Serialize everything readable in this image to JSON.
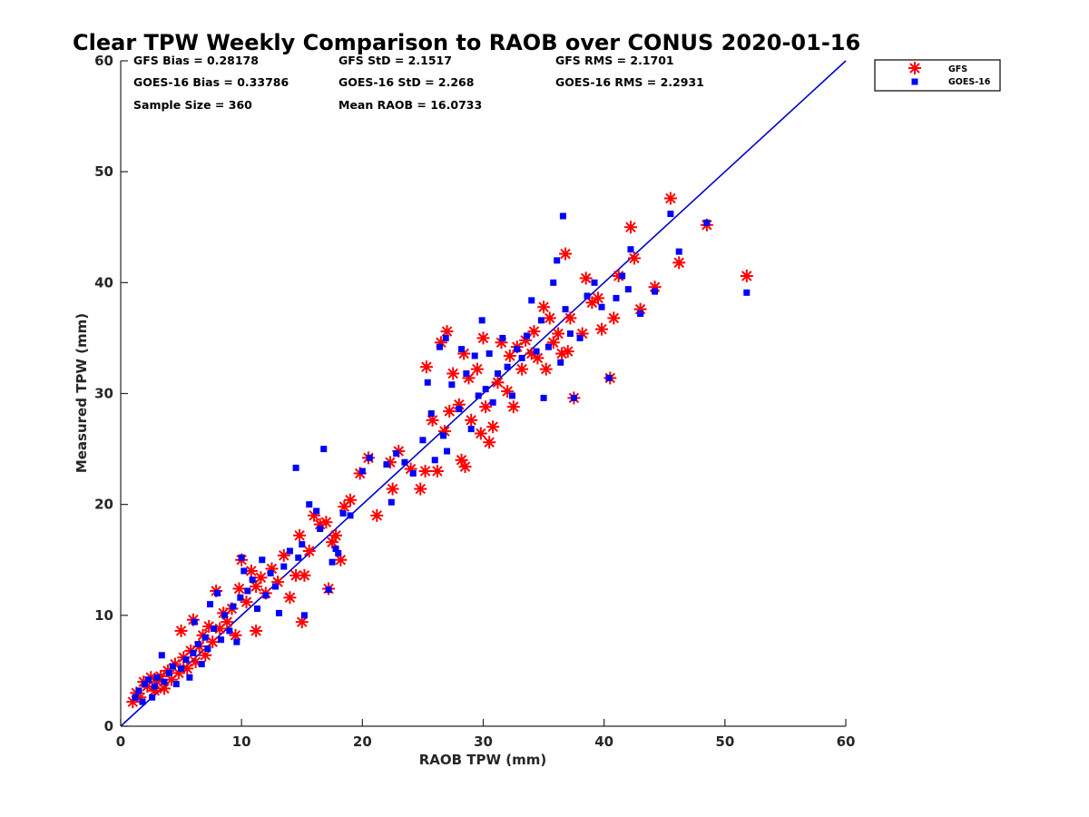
{
  "chart_data": {
    "type": "scatter",
    "title": "Clear TPW Weekly Comparison to RAOB over CONUS 2020-01-16",
    "xlabel": "RAOB TPW (mm)",
    "ylabel": "Measured TPW (mm)",
    "xlim": [
      0,
      60
    ],
    "ylim": [
      0,
      60
    ],
    "x_ticks": [
      "0",
      "10",
      "20",
      "30",
      "40",
      "50",
      "60"
    ],
    "y_ticks": [
      "0",
      "10",
      "20",
      "30",
      "40",
      "50",
      "60"
    ],
    "grid": false,
    "legend_position": "top-right outside",
    "reference_line": {
      "x": [
        0,
        60
      ],
      "y": [
        0,
        60
      ],
      "color": "#0000cc"
    },
    "stats": {
      "gfs_bias": "GFS Bias = 0.28178",
      "gfs_std": "GFS StD = 2.1517",
      "gfs_rms": "GFS RMS = 2.1701",
      "goes_bias": "GOES-16 Bias = 0.33786",
      "goes_std": "GOES-16 StD = 2.268",
      "goes_rms": "GOES-16 RMS = 2.2931",
      "sample_size": "Sample Size = 360",
      "mean_raob": "Mean RAOB = 16.0733"
    },
    "series": [
      {
        "name": "GFS",
        "marker": "asterisk",
        "color": "#ff0000",
        "points": [
          [
            1.0,
            2.2
          ],
          [
            1.3,
            3.0
          ],
          [
            1.6,
            2.6
          ],
          [
            1.9,
            4.0
          ],
          [
            2.2,
            3.6
          ],
          [
            2.5,
            4.4
          ],
          [
            2.8,
            3.2
          ],
          [
            3.0,
            4.0
          ],
          [
            3.3,
            4.5
          ],
          [
            3.6,
            3.4
          ],
          [
            3.9,
            5.0
          ],
          [
            4.2,
            4.2
          ],
          [
            4.5,
            5.6
          ],
          [
            4.8,
            4.8
          ],
          [
            5.0,
            8.6
          ],
          [
            5.2,
            6.2
          ],
          [
            5.5,
            5.2
          ],
          [
            5.8,
            6.8
          ],
          [
            6.0,
            9.6
          ],
          [
            6.2,
            5.8
          ],
          [
            6.5,
            7.2
          ],
          [
            6.8,
            8.2
          ],
          [
            7.0,
            6.4
          ],
          [
            7.3,
            9.0
          ],
          [
            7.6,
            7.6
          ],
          [
            7.9,
            12.2
          ],
          [
            8.2,
            8.8
          ],
          [
            8.5,
            10.2
          ],
          [
            8.8,
            9.4
          ],
          [
            9.2,
            10.6
          ],
          [
            9.5,
            8.2
          ],
          [
            9.8,
            12.4
          ],
          [
            10.0,
            15.0
          ],
          [
            10.4,
            11.2
          ],
          [
            10.8,
            14.0
          ],
          [
            11.2,
            12.6
          ],
          [
            11.2,
            8.6
          ],
          [
            11.6,
            13.4
          ],
          [
            12.0,
            12.0
          ],
          [
            12.5,
            14.2
          ],
          [
            13.0,
            13.0
          ],
          [
            13.5,
            15.4
          ],
          [
            14.0,
            11.6
          ],
          [
            14.5,
            13.6
          ],
          [
            14.8,
            17.2
          ],
          [
            15.0,
            9.4
          ],
          [
            15.2,
            13.6
          ],
          [
            15.6,
            15.8
          ],
          [
            16.0,
            19.0
          ],
          [
            16.5,
            18.2
          ],
          [
            17.0,
            18.4
          ],
          [
            17.2,
            12.4
          ],
          [
            17.5,
            16.6
          ],
          [
            17.8,
            17.2
          ],
          [
            18.2,
            15.0
          ],
          [
            18.5,
            19.8
          ],
          [
            19.0,
            20.4
          ],
          [
            19.8,
            22.8
          ],
          [
            20.5,
            24.2
          ],
          [
            21.2,
            19.0
          ],
          [
            22.3,
            23.8
          ],
          [
            22.5,
            21.4
          ],
          [
            23.0,
            24.8
          ],
          [
            24.0,
            23.2
          ],
          [
            24.8,
            21.4
          ],
          [
            25.2,
            23.0
          ],
          [
            25.3,
            32.4
          ],
          [
            25.8,
            27.6
          ],
          [
            26.2,
            23.0
          ],
          [
            26.5,
            34.6
          ],
          [
            26.8,
            26.6
          ],
          [
            27.0,
            35.6
          ],
          [
            27.2,
            28.4
          ],
          [
            27.5,
            31.8
          ],
          [
            28.0,
            29.0
          ],
          [
            28.2,
            24.0
          ],
          [
            28.4,
            33.6
          ],
          [
            28.5,
            23.4
          ],
          [
            28.8,
            31.4
          ],
          [
            29.0,
            27.6
          ],
          [
            29.5,
            32.2
          ],
          [
            29.8,
            26.4
          ],
          [
            30.0,
            35.0
          ],
          [
            30.2,
            28.8
          ],
          [
            30.5,
            25.6
          ],
          [
            30.8,
            27.0
          ],
          [
            31.2,
            31.0
          ],
          [
            31.5,
            34.6
          ],
          [
            32.0,
            30.2
          ],
          [
            32.2,
            33.4
          ],
          [
            32.5,
            28.8
          ],
          [
            32.8,
            34.2
          ],
          [
            33.2,
            32.2
          ],
          [
            33.5,
            34.8
          ],
          [
            34.0,
            33.6
          ],
          [
            34.2,
            35.6
          ],
          [
            34.5,
            33.2
          ],
          [
            35.0,
            37.8
          ],
          [
            35.2,
            32.2
          ],
          [
            35.5,
            36.8
          ],
          [
            35.8,
            34.6
          ],
          [
            36.2,
            35.4
          ],
          [
            36.5,
            33.6
          ],
          [
            36.8,
            42.6
          ],
          [
            37.0,
            33.8
          ],
          [
            37.2,
            36.8
          ],
          [
            37.5,
            29.6
          ],
          [
            38.2,
            35.4
          ],
          [
            38.5,
            40.4
          ],
          [
            39.0,
            38.2
          ],
          [
            39.5,
            38.6
          ],
          [
            39.8,
            35.8
          ],
          [
            40.5,
            31.4
          ],
          [
            40.8,
            36.8
          ],
          [
            41.2,
            40.6
          ],
          [
            42.2,
            45.0
          ],
          [
            42.5,
            42.2
          ],
          [
            43.0,
            37.6
          ],
          [
            44.2,
            39.6
          ],
          [
            45.5,
            47.6
          ],
          [
            46.2,
            41.8
          ],
          [
            48.5,
            45.2
          ],
          [
            51.8,
            40.6
          ]
        ]
      },
      {
        "name": "GOES-16",
        "marker": "square",
        "color": "#0000ff",
        "points": [
          [
            1.2,
            2.6
          ],
          [
            1.5,
            3.2
          ],
          [
            1.8,
            2.2
          ],
          [
            2.0,
            3.8
          ],
          [
            2.3,
            4.2
          ],
          [
            2.6,
            2.6
          ],
          [
            2.8,
            3.6
          ],
          [
            3.0,
            4.4
          ],
          [
            3.4,
            6.4
          ],
          [
            3.6,
            4.0
          ],
          [
            4.0,
            4.8
          ],
          [
            4.3,
            5.4
          ],
          [
            4.6,
            3.8
          ],
          [
            5.0,
            5.2
          ],
          [
            5.4,
            6.0
          ],
          [
            5.7,
            4.4
          ],
          [
            6.0,
            6.6
          ],
          [
            6.1,
            9.4
          ],
          [
            6.4,
            7.4
          ],
          [
            6.7,
            5.6
          ],
          [
            7.0,
            8.0
          ],
          [
            7.2,
            7.0
          ],
          [
            7.4,
            11.0
          ],
          [
            7.7,
            8.8
          ],
          [
            8.0,
            12.0
          ],
          [
            8.3,
            7.8
          ],
          [
            8.6,
            10.0
          ],
          [
            9.0,
            8.6
          ],
          [
            9.3,
            10.8
          ],
          [
            9.6,
            7.6
          ],
          [
            9.9,
            11.6
          ],
          [
            10.0,
            15.2
          ],
          [
            10.2,
            14.0
          ],
          [
            10.5,
            12.2
          ],
          [
            10.9,
            13.2
          ],
          [
            11.3,
            10.6
          ],
          [
            11.7,
            15.0
          ],
          [
            12.0,
            11.8
          ],
          [
            12.4,
            13.8
          ],
          [
            12.8,
            12.6
          ],
          [
            13.1,
            10.2
          ],
          [
            13.5,
            14.4
          ],
          [
            14.0,
            15.8
          ],
          [
            14.5,
            23.3
          ],
          [
            14.7,
            15.2
          ],
          [
            15.0,
            16.4
          ],
          [
            15.2,
            10.0
          ],
          [
            15.6,
            20.0
          ],
          [
            16.2,
            19.4
          ],
          [
            16.5,
            17.8
          ],
          [
            16.8,
            25.0
          ],
          [
            17.2,
            12.3
          ],
          [
            17.5,
            14.8
          ],
          [
            17.8,
            16.0
          ],
          [
            18.0,
            15.6
          ],
          [
            18.4,
            19.2
          ],
          [
            19.0,
            19.0
          ],
          [
            20.0,
            23.0
          ],
          [
            20.6,
            24.2
          ],
          [
            22.0,
            23.6
          ],
          [
            22.4,
            20.2
          ],
          [
            22.8,
            24.6
          ],
          [
            23.5,
            23.8
          ],
          [
            24.2,
            22.8
          ],
          [
            25.0,
            25.8
          ],
          [
            25.4,
            31.0
          ],
          [
            25.7,
            28.2
          ],
          [
            26.0,
            24.0
          ],
          [
            26.4,
            34.2
          ],
          [
            26.7,
            26.2
          ],
          [
            26.9,
            35.0
          ],
          [
            27.0,
            24.8
          ],
          [
            27.4,
            30.8
          ],
          [
            28.0,
            28.6
          ],
          [
            28.2,
            34.0
          ],
          [
            28.6,
            31.8
          ],
          [
            29.0,
            26.8
          ],
          [
            29.3,
            33.4
          ],
          [
            29.6,
            29.8
          ],
          [
            29.9,
            36.6
          ],
          [
            30.2,
            30.4
          ],
          [
            30.5,
            33.6
          ],
          [
            30.8,
            29.2
          ],
          [
            31.2,
            31.8
          ],
          [
            31.6,
            35.0
          ],
          [
            32.0,
            32.4
          ],
          [
            32.4,
            29.8
          ],
          [
            32.8,
            34.0
          ],
          [
            33.2,
            33.2
          ],
          [
            33.6,
            35.2
          ],
          [
            34.0,
            38.4
          ],
          [
            34.4,
            33.8
          ],
          [
            34.8,
            36.6
          ],
          [
            35.0,
            29.6
          ],
          [
            35.4,
            34.2
          ],
          [
            35.8,
            40.0
          ],
          [
            36.1,
            42.0
          ],
          [
            36.4,
            32.8
          ],
          [
            36.6,
            46.0
          ],
          [
            36.8,
            37.6
          ],
          [
            37.2,
            35.4
          ],
          [
            37.5,
            29.6
          ],
          [
            38.0,
            35.0
          ],
          [
            38.6,
            38.8
          ],
          [
            39.2,
            40.0
          ],
          [
            39.8,
            37.8
          ],
          [
            40.4,
            31.4
          ],
          [
            41.0,
            38.6
          ],
          [
            41.5,
            40.6
          ],
          [
            42.0,
            39.4
          ],
          [
            42.2,
            43.0
          ],
          [
            43.0,
            37.2
          ],
          [
            44.2,
            39.2
          ],
          [
            45.5,
            46.2
          ],
          [
            46.2,
            42.8
          ],
          [
            48.5,
            45.4
          ],
          [
            51.8,
            39.1
          ]
        ]
      }
    ]
  }
}
